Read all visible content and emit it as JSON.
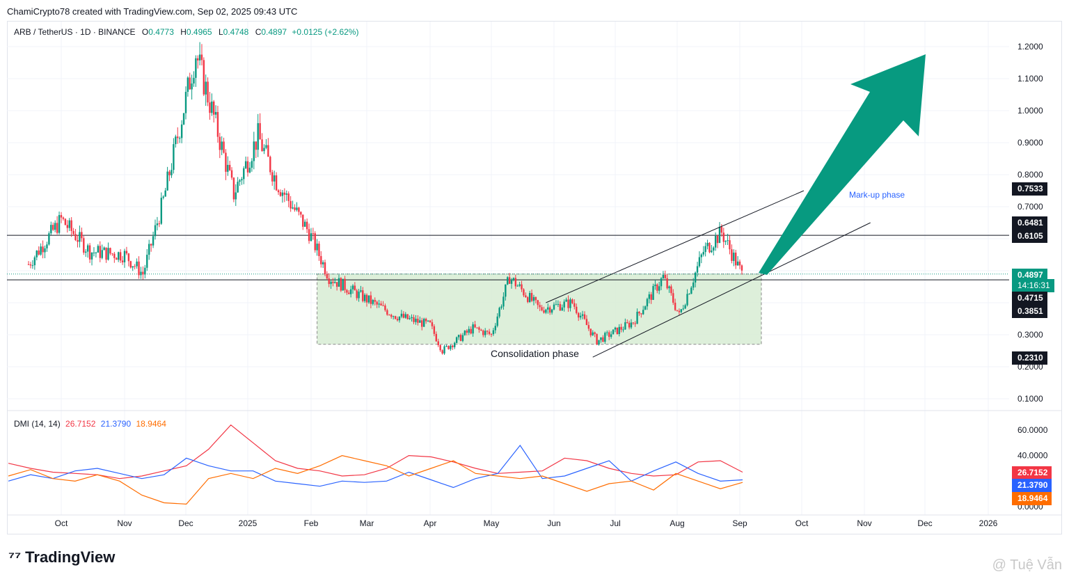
{
  "header": {
    "text": "ChamiCrypto78 created with TradingView.com, Sep 02, 2025 09:43 UTC"
  },
  "symbol": {
    "title": "ARB / TetherUS · 1D · BINANCE",
    "o_label": "O",
    "o": "0.4773",
    "h_label": "H",
    "h": "0.4965",
    "l_label": "L",
    "l": "0.4748",
    "c_label": "C",
    "c": "0.4897",
    "change": "+0.0125 (+2.62%)"
  },
  "price_axis": {
    "ticks": [
      "1.2000",
      "1.1000",
      "1.0000",
      "0.9000",
      "0.8000",
      "0.7000",
      "0.3000",
      "0.2000",
      "0.1000"
    ],
    "tags": [
      {
        "label": "0.7533",
        "color": "#131722"
      },
      {
        "label": "0.6481",
        "color": "#131722"
      },
      {
        "label": "0.6105",
        "color": "#131722"
      },
      {
        "label": "0.4897",
        "color": "#089981"
      },
      {
        "label": "14:16:31",
        "color": "#089981"
      },
      {
        "label": "0.4715",
        "color": "#131722"
      },
      {
        "label": "0.3851",
        "color": "#131722"
      },
      {
        "label": "0.2310",
        "color": "#131722"
      }
    ]
  },
  "time_axis": {
    "labels": [
      "Oct",
      "Nov",
      "Dec",
      "2025",
      "Feb",
      "Mar",
      "Apr",
      "May",
      "Jun",
      "Jul",
      "Aug",
      "Sep",
      "Oct",
      "Nov",
      "Dec",
      "2026"
    ]
  },
  "annotations": {
    "consolidation": "Consolidation phase",
    "markup": "Mark-up phase"
  },
  "dmi": {
    "title": "DMI (14, 14)",
    "adx": "26.7152",
    "plus": "21.3790",
    "minus": "18.9464",
    "axis": [
      "60.0000",
      "40.0000",
      "0.0000"
    ],
    "colors": {
      "adx": "#f23645",
      "plus": "#2962ff",
      "minus": "#ff6d00"
    }
  },
  "colors": {
    "up": "#089981",
    "down": "#f23645",
    "box": "#d7ecd3",
    "arrow": "#079a80"
  },
  "footer": {
    "brand": "TradingView",
    "watermark": "@ Tuệ Vẫn"
  },
  "chart_data": {
    "type": "candlestick",
    "symbol": "ARB/USDT",
    "timeframe": "1D",
    "y_scale": "price (USDT)",
    "ylim": [
      0.1,
      1.2
    ],
    "approx_close_path": [
      {
        "date": "2024-09-15",
        "close": 0.52
      },
      {
        "date": "2024-10-01",
        "close": 0.66
      },
      {
        "date": "2024-10-15",
        "close": 0.56
      },
      {
        "date": "2024-11-01",
        "close": 0.55
      },
      {
        "date": "2024-11-10",
        "close": 0.49
      },
      {
        "date": "2024-11-20",
        "close": 0.72
      },
      {
        "date": "2024-12-06",
        "close": 1.18
      },
      {
        "date": "2024-12-15",
        "close": 0.98
      },
      {
        "date": "2024-12-25",
        "close": 0.74
      },
      {
        "date": "2025-01-06",
        "close": 0.92
      },
      {
        "date": "2025-01-15",
        "close": 0.78
      },
      {
        "date": "2025-01-31",
        "close": 0.62
      },
      {
        "date": "2025-02-10",
        "close": 0.48
      },
      {
        "date": "2025-03-01",
        "close": 0.41
      },
      {
        "date": "2025-03-15",
        "close": 0.36
      },
      {
        "date": "2025-04-01",
        "close": 0.33
      },
      {
        "date": "2025-04-07",
        "close": 0.25
      },
      {
        "date": "2025-04-22",
        "close": 0.32
      },
      {
        "date": "2025-05-01",
        "close": 0.3
      },
      {
        "date": "2025-05-10",
        "close": 0.48
      },
      {
        "date": "2025-05-25",
        "close": 0.38
      },
      {
        "date": "2025-06-10",
        "close": 0.4
      },
      {
        "date": "2025-06-22",
        "close": 0.28
      },
      {
        "date": "2025-07-10",
        "close": 0.34
      },
      {
        "date": "2025-07-25",
        "close": 0.48
      },
      {
        "date": "2025-08-02",
        "close": 0.36
      },
      {
        "date": "2025-08-14",
        "close": 0.56
      },
      {
        "date": "2025-08-23",
        "close": 0.62
      },
      {
        "date": "2025-09-02",
        "close": 0.4897
      }
    ],
    "horizontal_levels": [
      0.6105,
      0.4715
    ],
    "consolidation_box": {
      "from": "2025-02-04",
      "to": "2025-09-02",
      "top": 0.4897,
      "bottom": 0.27
    },
    "channel": {
      "upper": [
        {
          "date": "2025-05-28",
          "price": 0.4
        },
        {
          "date": "2025-10-02",
          "price": 0.75
        }
      ],
      "lower": [
        {
          "date": "2025-06-20",
          "price": 0.23
        },
        {
          "date": "2025-11-04",
          "price": 0.65
        }
      ]
    },
    "dmi": {
      "adx_path": [
        34,
        30,
        27,
        26,
        25,
        22,
        24,
        28,
        32,
        45,
        64,
        50,
        36,
        30,
        28,
        24,
        25,
        30,
        40,
        39,
        35,
        30,
        26,
        27,
        28,
        38,
        36,
        30,
        26,
        24,
        25,
        35,
        36,
        27
      ],
      "plus_path": [
        20,
        25,
        22,
        28,
        30,
        26,
        22,
        25,
        38,
        32,
        28,
        28,
        20,
        18,
        16,
        20,
        19,
        20,
        27,
        21,
        15,
        22,
        26,
        48,
        22,
        24,
        30,
        36,
        20,
        28,
        35,
        26,
        20,
        21
      ],
      "minus_path": [
        24,
        29,
        22,
        20,
        25,
        20,
        9,
        3,
        2,
        22,
        26,
        22,
        30,
        26,
        32,
        40,
        36,
        32,
        24,
        30,
        36,
        26,
        24,
        22,
        24,
        18,
        12,
        18,
        20,
        13,
        26,
        20,
        14,
        19
      ]
    }
  }
}
